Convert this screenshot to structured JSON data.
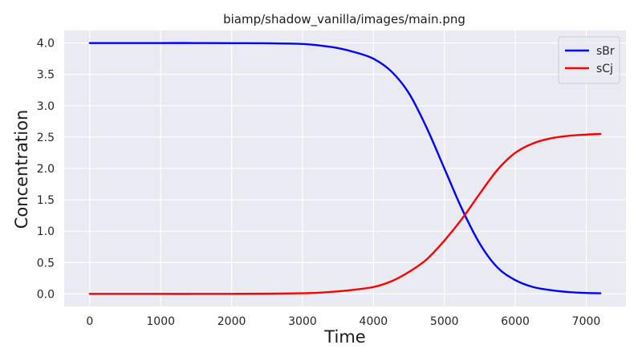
{
  "chart_data": {
    "type": "line",
    "title": "biamp/shadow_vanilla/images/main.png",
    "xlabel": "Time",
    "ylabel": "Concentration",
    "xlim": [
      -360,
      7560
    ],
    "ylim": [
      -0.2,
      4.2
    ],
    "xticks": [
      0,
      1000,
      2000,
      3000,
      4000,
      5000,
      6000,
      7000
    ],
    "xtick_labels": [
      "0",
      "1000",
      "2000",
      "3000",
      "4000",
      "5000",
      "6000",
      "7000"
    ],
    "yticks": [
      0.0,
      0.5,
      1.0,
      1.5,
      2.0,
      2.5,
      3.0,
      3.5,
      4.0
    ],
    "ytick_labels": [
      "0.0",
      "0.5",
      "1.0",
      "1.5",
      "2.0",
      "2.5",
      "3.0",
      "3.5",
      "4.0"
    ],
    "grid": true,
    "legend_position": "top-right",
    "background": "#eaeaf2",
    "x": [
      0,
      500,
      1000,
      1500,
      2000,
      2500,
      3000,
      3250,
      3500,
      3750,
      4000,
      4250,
      4500,
      4750,
      5000,
      5250,
      5500,
      5750,
      6000,
      6250,
      6500,
      6750,
      7000,
      7200
    ],
    "series": [
      {
        "name": "sBr",
        "color": "#0000ff",
        "values": [
          4.0,
          4.0,
          4.0,
          4.0,
          3.998,
          3.996,
          3.985,
          3.96,
          3.92,
          3.85,
          3.75,
          3.55,
          3.2,
          2.65,
          2.0,
          1.35,
          0.8,
          0.42,
          0.22,
          0.11,
          0.06,
          0.03,
          0.015,
          0.01
        ]
      },
      {
        "name": "sCj",
        "color": "#ff0000",
        "values": [
          0.0,
          0.0,
          0.0,
          0.0,
          0.001,
          0.003,
          0.01,
          0.02,
          0.04,
          0.07,
          0.11,
          0.2,
          0.35,
          0.55,
          0.85,
          1.2,
          1.6,
          1.98,
          2.25,
          2.4,
          2.48,
          2.52,
          2.54,
          2.55
        ]
      }
    ]
  }
}
